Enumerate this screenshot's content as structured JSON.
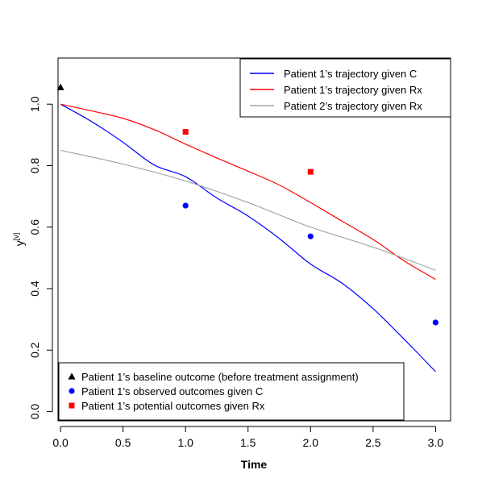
{
  "chart_data": {
    "type": "line",
    "xlabel": "Time",
    "ylabel": "y",
    "ylabel_superscript": "[v]",
    "xlim": [
      -0.02,
      3.12
    ],
    "ylim": [
      -0.03,
      1.15
    ],
    "xticks": [
      0.0,
      0.5,
      1.0,
      1.5,
      2.0,
      2.5,
      3.0
    ],
    "xtick_labels": [
      "0.0",
      "0.5",
      "1.0",
      "1.5",
      "2.0",
      "2.5",
      "3.0"
    ],
    "yticks": [
      0.0,
      0.2,
      0.4,
      0.6,
      0.8,
      1.0
    ],
    "ytick_labels": [
      "0.0",
      "0.2",
      "0.4",
      "0.6",
      "0.8",
      "1.0"
    ],
    "grid": false,
    "series": [
      {
        "name": "Patient 1’s trajectory given C",
        "kind": "line",
        "color": "#0000ff",
        "x": [
          0.0,
          0.25,
          0.5,
          0.75,
          1.0,
          1.25,
          1.5,
          1.75,
          2.0,
          2.25,
          2.5,
          2.75,
          3.0
        ],
        "y": [
          1.0,
          0.943,
          0.876,
          0.802,
          0.764,
          0.695,
          0.636,
          0.563,
          0.48,
          0.418,
          0.335,
          0.235,
          0.13
        ]
      },
      {
        "name": "Patient 1’s trajectory given Rx",
        "kind": "line",
        "color": "#ff0000",
        "x": [
          0.0,
          0.25,
          0.5,
          0.75,
          1.0,
          1.25,
          1.5,
          1.75,
          2.0,
          2.25,
          2.5,
          2.75,
          3.0
        ],
        "y": [
          1.0,
          0.978,
          0.954,
          0.917,
          0.87,
          0.825,
          0.782,
          0.737,
          0.68,
          0.62,
          0.56,
          0.49,
          0.43
        ]
      },
      {
        "name": "Patient 2’s trajectory given Rx",
        "kind": "line",
        "color": "#a6a6a6",
        "x": [
          0.0,
          0.5,
          1.0,
          1.5,
          2.0,
          2.5,
          3.0
        ],
        "y": [
          0.85,
          0.805,
          0.75,
          0.68,
          0.6,
          0.535,
          0.46
        ]
      },
      {
        "name": "Patient 1’s baseline outcome (before treatment assignment)",
        "kind": "points",
        "marker": "triangle",
        "color": "#000000",
        "x": [
          0.0
        ],
        "y": [
          1.055
        ]
      },
      {
        "name": "Patient 1’s observed outcomes given C",
        "kind": "points",
        "marker": "circle",
        "color": "#0000ff",
        "x": [
          1.0,
          2.0,
          3.0
        ],
        "y": [
          0.67,
          0.57,
          0.29
        ]
      },
      {
        "name": "Patient 1’s potential outcomes given Rx",
        "kind": "points",
        "marker": "square",
        "color": "#ff0000",
        "x": [
          1.0,
          2.0
        ],
        "y": [
          0.91,
          0.78
        ]
      }
    ],
    "legends": [
      {
        "placement": "top-right",
        "entries": [
          "Patient 1’s trajectory given C",
          "Patient 1’s trajectory given Rx",
          "Patient 2’s trajectory given Rx"
        ]
      },
      {
        "placement": "bottom-left",
        "entries": [
          "Patient 1’s baseline outcome (before treatment assignment)",
          "Patient 1’s observed outcomes given C",
          "Patient 1’s potential outcomes given Rx"
        ]
      }
    ]
  }
}
